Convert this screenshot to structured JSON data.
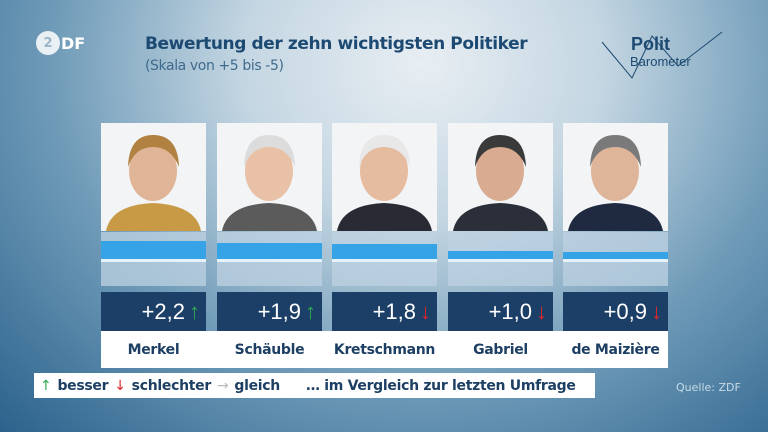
{
  "broadcaster_logo": "ZDF",
  "brand_logo": {
    "line1": "Polit",
    "line2": "Barometer"
  },
  "chart_data": {
    "type": "bar",
    "title": "Bewertung der zehn wichtigsten Politiker",
    "subtitle": "(Skala von +5 bis -5)",
    "categories": [
      "Merkel",
      "Schäuble",
      "Kretschmann",
      "Gabriel",
      "de Maizière"
    ],
    "values": [
      2.2,
      1.9,
      1.8,
      1.0,
      0.9
    ],
    "value_labels": [
      "+2,2",
      "+1,9",
      "+1,8",
      "+1,0",
      "+0,9"
    ],
    "trend": [
      "up",
      "up",
      "down",
      "down",
      "down"
    ],
    "ylim": [
      -5,
      5
    ],
    "bar_color": "#35a3e6"
  },
  "trend_colors": {
    "up": "#2fa84f",
    "down": "#e0262b",
    "same": "#bbbbbb"
  },
  "trend_glyphs": {
    "up": "↑",
    "down": "↓",
    "same": "→"
  },
  "legend": {
    "up": "besser",
    "down": "schlechter",
    "same": "gleich",
    "note": "… im Vergleich zur letzten Umfrage"
  },
  "source": "Quelle: ZDF"
}
